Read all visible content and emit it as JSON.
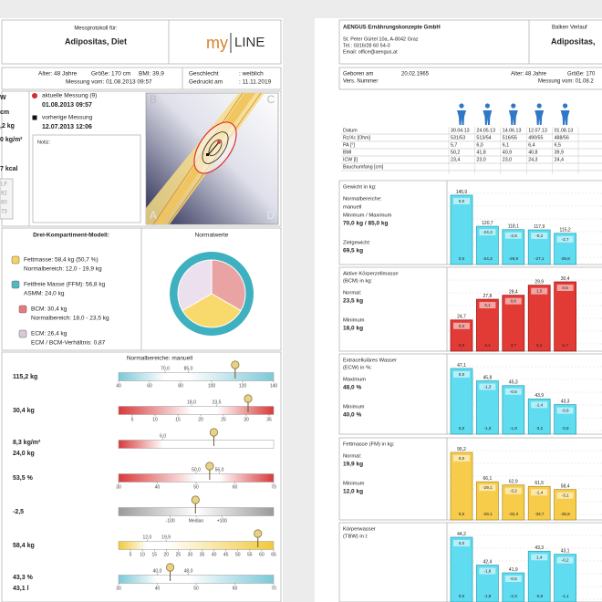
{
  "left": {
    "header": {
      "caption": "Messprotokoll für:",
      "name": "Adipositas, Diet",
      "logo_a": "my",
      "logo_b": "LINE"
    },
    "info": {
      "age": "Alter: 48 Jahre",
      "height": "Größe: 170 cm",
      "bmi": "BMI: 39,9",
      "date": "Messung vom: 01.08.2013 09:57",
      "sex_label": "Geschlecht",
      "sex": ": weiblich",
      "printed_label": "Gedruckt am",
      "printed": ": 11.11.2019"
    },
    "side": [
      "W",
      "cm",
      ",2 kg",
      "0 kg/m²",
      "7 kcal"
    ],
    "side_box": [
      "LF",
      "92",
      "60",
      "73"
    ],
    "legend": {
      "current": "aktuelle Messung (9)",
      "current_date": "01.08.2013 09:57",
      "previous": "vorherige Messung",
      "previous_date": "12.07.2013 12:06"
    },
    "note": "Notiz:",
    "graph_letters": [
      "A",
      "B",
      "C",
      "D"
    ],
    "model": {
      "title": "Drei-Kompartiment-Modell:",
      "normal_title": "Normalwerte",
      "items": [
        {
          "color": "#f7d25e",
          "lines": [
            "Fettmasse: 58,4 kg (50,7 %)",
            "Normalbereich: 12,0 - 19,9 kg"
          ]
        },
        {
          "color": "#4fb8c4",
          "lines": [
            "Fettfreie Masse (FFM): 56,8 kg",
            "ASMM: 24,0 kg"
          ]
        },
        {
          "color": "#e57a78",
          "lines": [
            "BCM: 30,4 kg",
            "Normalbereich: 18,0 - 23,5 kg"
          ]
        },
        {
          "color": "#dcc8d6",
          "lines": [
            "ECM: 26,4 kg",
            "ECM / BCM-Verhältnis: 0,87"
          ]
        }
      ]
    },
    "gauges": {
      "title": "Normalbereiche: manuell",
      "rows": [
        {
          "labels": [
            "115,2 kg"
          ],
          "value": 115.2,
          "lim": [
            40,
            140
          ],
          "ticks": [
            40,
            60,
            80,
            100,
            120,
            140
          ],
          "normal": [
            {
              "value": 70,
              "label": "70,0"
            },
            {
              "value": 85,
              "label": "85,0"
            }
          ],
          "color": "#7cc8d8"
        },
        {
          "labels": [
            "30,4 kg"
          ],
          "value": 30.4,
          "lim": [
            2,
            36
          ],
          "ticks": [
            5,
            10,
            15,
            20,
            25,
            30,
            35
          ],
          "normal": [
            {
              "value": 18,
              "label": "18,0"
            },
            {
              "value": 23.5,
              "label": "23,5"
            }
          ],
          "color": "#d9393a"
        },
        {
          "labels": [
            "8,3 kg/m²",
            "24,0 kg"
          ],
          "value": 8.3,
          "lim": [
            4,
            11
          ],
          "ticks": [],
          "normal": [
            {
              "value": 6,
              "label": "6,0"
            }
          ],
          "color": "#d9393a"
        },
        {
          "labels": [
            "53,5 %"
          ],
          "value": 53.5,
          "lim": [
            30,
            70
          ],
          "ticks": [
            30,
            40,
            50,
            60,
            70
          ],
          "normal": [
            {
              "value": 50,
              "label": "50,0"
            },
            {
              "value": 56,
              "label": "56,0"
            }
          ],
          "color": "#d9393a"
        },
        {
          "labels": [
            "-2,5"
          ],
          "value": -2.5,
          "lim": [
            -300,
            300
          ],
          "ticks": [
            -100,
            {
              "value": 0,
              "label": "Median"
            },
            {
              "value": 100,
              "label": "+100"
            }
          ],
          "normal": [],
          "color": "#9a9a9a"
        },
        {
          "labels": [
            "58,4 kg"
          ],
          "value": 58.4,
          "lim": [
            0,
            65
          ],
          "ticks": [
            5,
            10,
            15,
            20,
            25,
            30,
            35,
            40,
            45,
            50,
            55,
            60,
            65
          ],
          "normal": [
            {
              "value": 12,
              "label": "12,0"
            },
            {
              "value": 19.9,
              "label": "19,9"
            }
          ],
          "color": "#f2c93a"
        },
        {
          "labels": [
            "43,3 %",
            "43,1 l"
          ],
          "value": 43.3,
          "lim": [
            30,
            70
          ],
          "ticks": [
            30,
            40,
            50,
            60,
            70
          ],
          "normal": [
            {
              "value": 40,
              "label": "40,0"
            },
            {
              "value": 48,
              "label": "48,0"
            }
          ],
          "color": "#7cc8d8"
        }
      ]
    }
  },
  "right": {
    "company": {
      "name": "AENGUS Ernährungskonzepte GmbH",
      "address": "St. Peter Gürtel 10a, A-8042 Graz",
      "phone": "Tel.: 0316/28 60 54-0",
      "email": "Email: office@aengus.at"
    },
    "report_title": "Balken Verlauf",
    "patient": "Adipositas, ",
    "info": {
      "born_label": "Geboren am",
      "born": "20.02.1965",
      "insurance_label": "Vers. Nummer",
      "age": "Alter: 48 Jahre",
      "height": "Größe: 170",
      "date": "Messung vom: 01.08.2"
    },
    "table": {
      "rows": [
        [
          "Datum",
          "30.04.13",
          "24.05.13",
          "14.06.13",
          "12.07.13",
          "01.08.13"
        ],
        [
          "Rz/Xc [Ohm]",
          "531/53",
          "513/54",
          "516/55",
          "490/55",
          "488/56"
        ],
        [
          "PA [°]",
          "5,7",
          "6,0",
          "6,1",
          "6,4",
          "6,5"
        ],
        [
          "BMI",
          "50,2",
          "41,8",
          "40,9",
          "40,8",
          "39,9"
        ],
        [
          "ICW [l]",
          "23,4",
          "23,0",
          "23,0",
          "24,3",
          "24,4"
        ],
        [
          "Bauchumfang [cm]"
        ]
      ]
    },
    "panels": [
      {
        "title": [
          "Gewicht in kg:"
        ],
        "color": "#5fdcef",
        "stroke": "#2a9fb0",
        "side": [
          [
            "Normalbereiche:",
            "manuell",
            "Minimum / Maximum",
            "70,0 kg / 85,0 kg"
          ],
          [
            "Zielgewicht",
            "69,5 kg"
          ]
        ],
        "values": [
          145.0,
          120.7,
          118.1,
          117.9,
          115.2
        ],
        "value_labels": [
          "145,0",
          "120,7",
          "118,1",
          "117,9",
          "115,2"
        ],
        "inner": [
          "0,0",
          "-24,3",
          "-2,6",
          "-0,2",
          "-2,7"
        ],
        "bottom": [
          "0,0",
          "-24,3",
          "-26,9",
          "-27,1",
          "-29,8"
        ]
      },
      {
        "title": [
          "Aktive Körperzellmasse",
          "(BCM) in kg:"
        ],
        "color": "#e23a35",
        "stroke": "#9a1010",
        "side": [
          [
            "Normal:",
            "23,5 kg"
          ],
          [
            "Minimum",
            "18,0 kg"
          ]
        ],
        "values": [
          24.7,
          27.8,
          28.4,
          29.9,
          30.4
        ],
        "value_labels": [
          "24,7",
          "27,8",
          "28,4",
          "29,9",
          "30,4"
        ],
        "inner": [
          "0,0",
          "3,1",
          "0,6",
          "1,5",
          "0,5"
        ],
        "bottom": [
          "0,0",
          "3,1",
          "3,7",
          "5,2",
          "5,7"
        ]
      },
      {
        "title": [
          "Extracelluläres Wasser",
          "(ECW) in %:"
        ],
        "color": "#5fdcef",
        "stroke": "#2a9fb0",
        "side": [
          [
            "Maximum",
            "48,0 %"
          ],
          [
            "Minimum",
            "40,0 %"
          ]
        ],
        "values": [
          47.1,
          45.8,
          45.3,
          43.9,
          43.3
        ],
        "value_labels": [
          "47,1",
          "45,8",
          "45,3",
          "43,9",
          "43,3"
        ],
        "inner": [
          "0,0",
          "-1,3",
          "-0,5",
          "-1,4",
          "-0,6"
        ],
        "bottom": [
          "0,0",
          "-1,3",
          "-1,8",
          "-3,2",
          "-3,8"
        ]
      },
      {
        "title": [
          "Fettmasse (FM) in kg:"
        ],
        "color": "#f6cc4a",
        "stroke": "#b08a20",
        "side": [
          [
            "Normal:",
            "19,9 kg"
          ],
          [
            "Minimum",
            "12,0 kg"
          ]
        ],
        "values": [
          95.2,
          66.1,
          62.9,
          61.5,
          58.4
        ],
        "value_labels": [
          "95,2",
          "66,1",
          "62,9",
          "61,5",
          "58,4"
        ],
        "inner": [
          "0,0",
          "-29,1",
          "-3,2",
          "-1,4",
          "-3,1"
        ],
        "bottom": [
          "0,0",
          "-29,1",
          "-32,3",
          "-33,7",
          "-36,8"
        ]
      },
      {
        "title": [
          "Körperwasser",
          "(TBW) in l:"
        ],
        "color": "#5fdcef",
        "stroke": "#2a9fb0",
        "side": [],
        "values": [
          44.2,
          42.4,
          41.9,
          43.3,
          43.1
        ],
        "value_labels": [
          "44,2",
          "42,4",
          "41,9",
          "43,3",
          "43,1"
        ],
        "inner": [
          "0,0",
          "-1,8",
          "-0,5",
          "1,4",
          "-0,2"
        ],
        "bottom": [
          "0,0",
          "-1,8",
          "-2,3",
          "-0,9",
          "-1,1"
        ]
      }
    ]
  }
}
